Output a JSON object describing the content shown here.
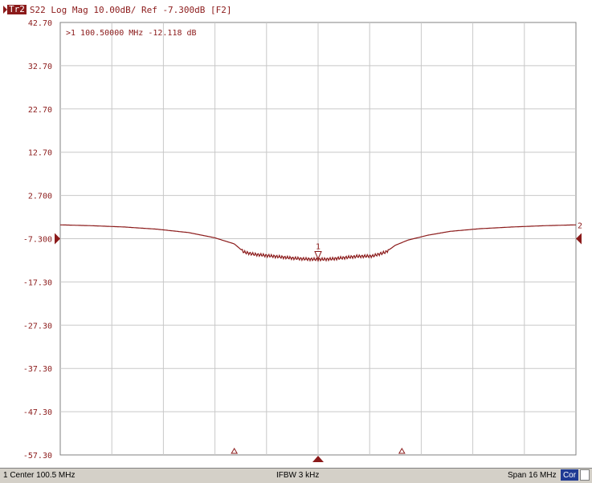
{
  "header": {
    "trace_tag": "Tr2",
    "text": "S22 Log Mag 10.00dB/ Ref -7.300dB [F2]"
  },
  "marker_readout": ">1  100.50000 MHz -12.118 dB",
  "status_bar": {
    "left": "1 Center 100.5 MHz",
    "center": "IFBW 3 kHz",
    "right": "Span 16 MHz",
    "badge": "Cor"
  },
  "colors": {
    "trace": "#8b1a1a",
    "grid": "#c8c8c8",
    "badge_bg": "#1f3a93"
  },
  "chart_data": {
    "type": "line",
    "x_unit": "MHz",
    "y_unit": "dB",
    "center_mhz": 100.5,
    "span_mhz": 16,
    "xlim": [
      92.5,
      108.5
    ],
    "ylim": [
      -57.3,
      42.7
    ],
    "y_ticks": [
      "42.70",
      "32.70",
      "22.70",
      "12.70",
      "2.700",
      "-7.300",
      "-17.30",
      "-27.30",
      "-37.30",
      "-47.30",
      "-57.30"
    ],
    "x_divisions": 10,
    "grid": true,
    "reference_level_db": -7.3,
    "series": [
      {
        "x": [
          92.5,
          93.5,
          94.5,
          95.5,
          96.5,
          97.3,
          97.9,
          98.2,
          98.5,
          98.9,
          99.3,
          99.7,
          100.1,
          100.5,
          100.9,
          101.3,
          101.7,
          102.2,
          102.6,
          102.9,
          103.3,
          103.9,
          104.6,
          105.5,
          106.5,
          107.5,
          108.5
        ],
        "y": [
          -4.1,
          -4.3,
          -4.6,
          -5.1,
          -5.9,
          -7.1,
          -8.5,
          -10.4,
          -10.9,
          -11.2,
          -11.5,
          -11.8,
          -12.0,
          -12.1,
          -12.0,
          -11.7,
          -11.4,
          -11.3,
          -10.4,
          -8.8,
          -7.6,
          -6.5,
          -5.6,
          -5.0,
          -4.6,
          -4.3,
          -4.1
        ]
      }
    ],
    "markers": [
      {
        "label": "1",
        "x": 100.5,
        "y": -12.118
      }
    ],
    "right_edge_label": "2",
    "bottom_triangle_markers_mhz": [
      97.9,
      103.1
    ]
  }
}
